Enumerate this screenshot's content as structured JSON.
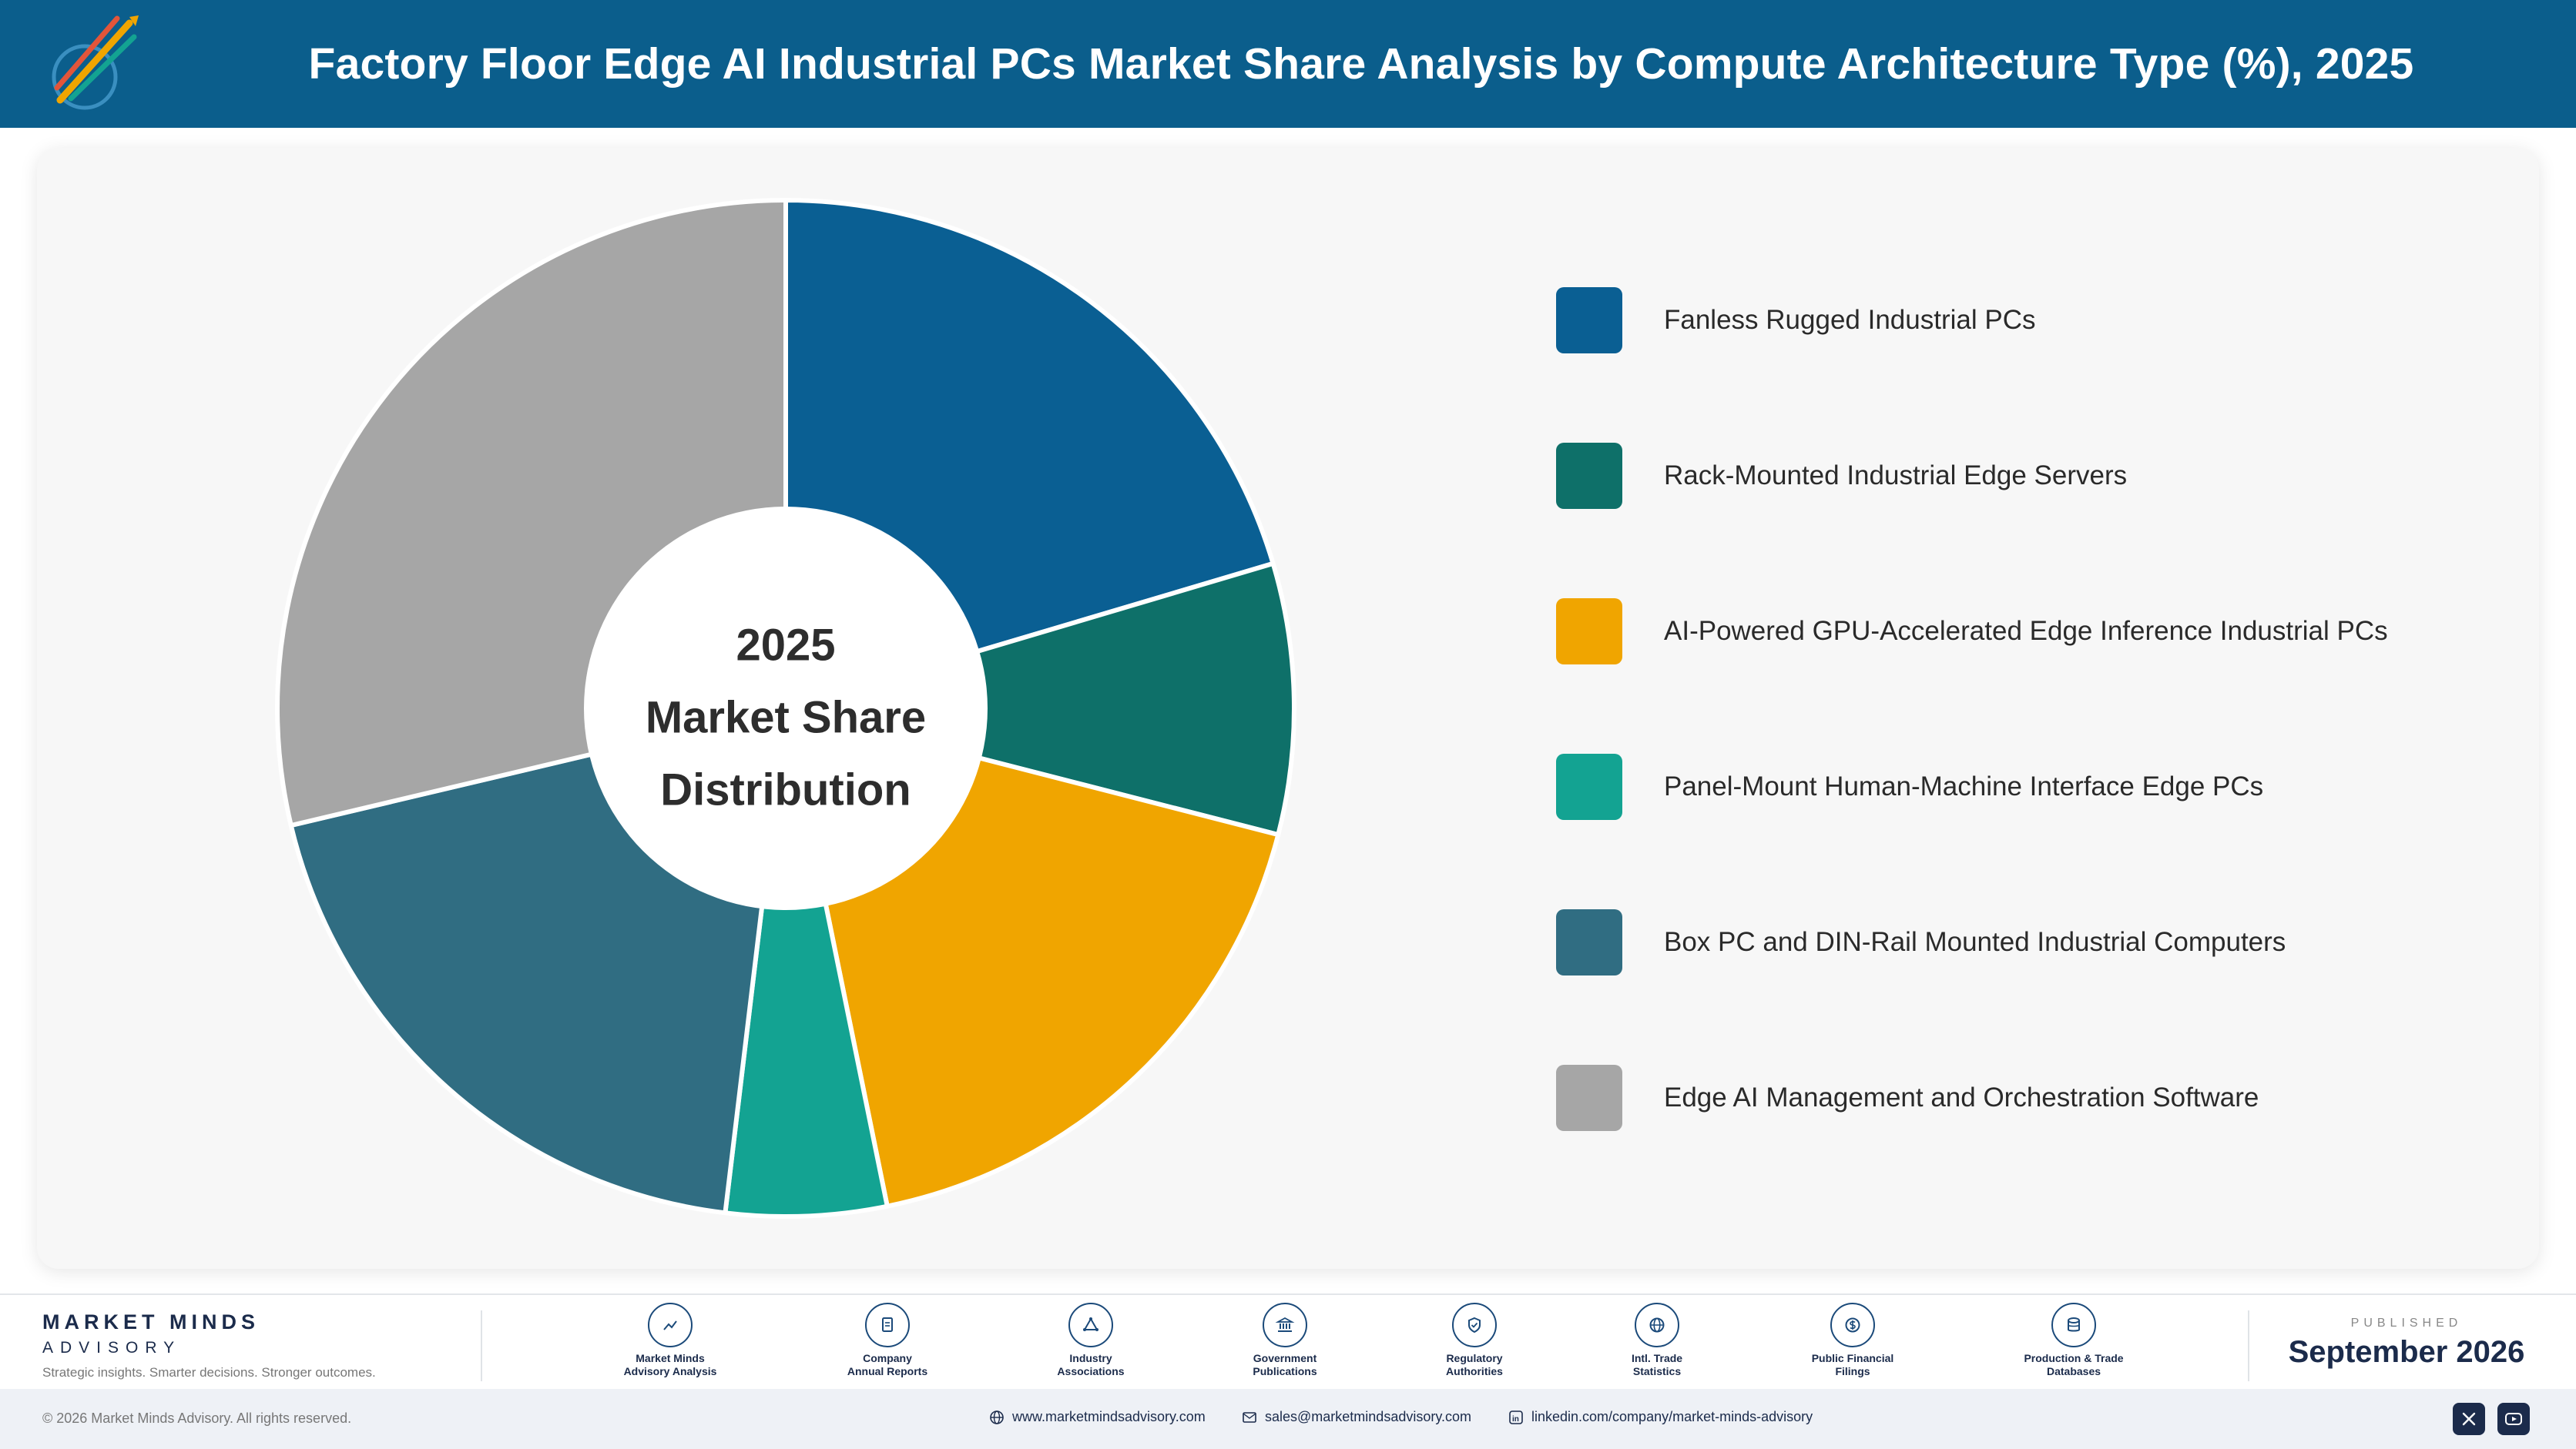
{
  "header": {
    "title": "Factory Floor Edge AI Industrial PCs Market Share Analysis by Compute Architecture Type (%), 2025"
  },
  "chart_data": {
    "type": "pie",
    "donut": true,
    "center_label": [
      "2025",
      "Market Share",
      "Distribution"
    ],
    "legend_position": "right",
    "categories": [
      "Fanless Rugged Industrial PCs",
      "Rack-Mounted Industrial Edge Servers",
      "AI-Powered GPU-Accelerated Edge Inference Industrial PCs",
      "Panel-Mount Human-Machine Interface Edge PCs",
      "Box PC and DIN-Rail Mounted Industrial Computers",
      "Edge AI Management and Orchestration Software"
    ],
    "values": [
      20.4,
      8.6,
      17.8,
      5.1,
      19.4,
      28.7
    ],
    "colors": [
      "#0a5f93",
      "#0e7069",
      "#f0a500",
      "#13a392",
      "#306d82",
      "#a6a6a6"
    ]
  },
  "footer": {
    "brand_name": "MARKET MINDS",
    "brand_sub": "ADVISORY",
    "tagline": "Strategic insights. Smarter decisions. Stronger outcomes.",
    "sources": [
      {
        "icon": "trend-chart-icon",
        "line1": "Market Minds",
        "line2": "Advisory Analysis"
      },
      {
        "icon": "document-icon",
        "line1": "Company",
        "line2": "Annual Reports"
      },
      {
        "icon": "network-icon",
        "line1": "Industry",
        "line2": "Associations"
      },
      {
        "icon": "government-building-icon",
        "line1": "Government",
        "line2": "Publications"
      },
      {
        "icon": "shield-check-icon",
        "line1": "Regulatory",
        "line2": "Authorities"
      },
      {
        "icon": "globe-icon",
        "line1": "Intl. Trade",
        "line2": "Statistics"
      },
      {
        "icon": "dollar-coin-icon",
        "line1": "Public Financial",
        "line2": "Filings"
      },
      {
        "icon": "database-icon",
        "line1": "Production & Trade",
        "line2": "Databases"
      }
    ],
    "published_label": "PUBLISHED",
    "published_date": "September 2026"
  },
  "bottom_bar": {
    "copyright": "© 2026 Market Minds Advisory. All rights reserved.",
    "website": "www.marketmindsadvisory.com",
    "email": "sales@marketmindsadvisory.com",
    "linkedin": "linkedin.com/company/market-minds-advisory"
  }
}
